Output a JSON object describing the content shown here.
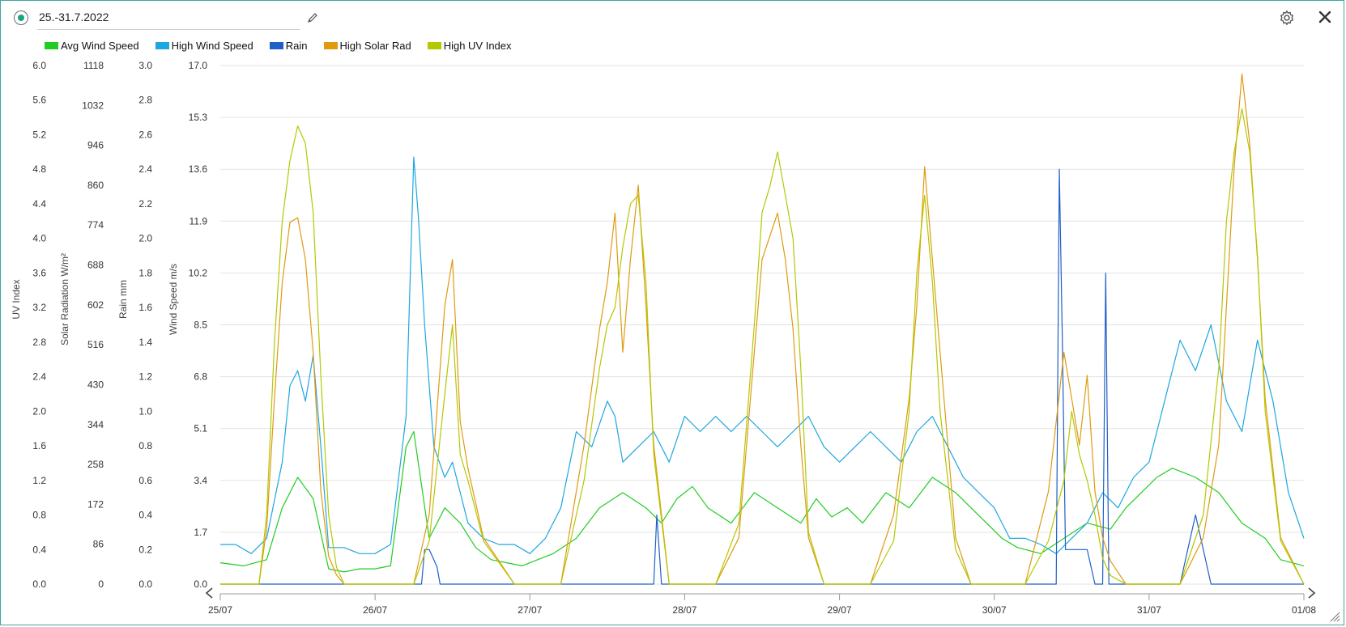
{
  "header": {
    "title": "25.-31.7.2022",
    "edit_icon": "pencil-icon",
    "settings_icon": "gear-icon",
    "close_icon": "close-icon"
  },
  "colors": {
    "avg_wind": "#22cc22",
    "high_wind": "#1ea6e0",
    "rain": "#1f5fc8",
    "solar": "#e09a10",
    "uv": "#b4c800",
    "frame": "#3aa79b"
  },
  "chart_data": {
    "type": "line",
    "title": "",
    "legend_placement": "top-left",
    "grid": true,
    "x_ticks": [
      "25/07",
      "26/07",
      "27/07",
      "28/07",
      "29/07",
      "30/07",
      "31/07",
      "01/08"
    ],
    "x_range_days": [
      0,
      7
    ],
    "axes": [
      {
        "id": "uv",
        "label": "UV Index",
        "range": [
          0,
          6.0
        ],
        "ticks": [
          "0.0",
          "0.4",
          "0.8",
          "1.2",
          "1.6",
          "2.0",
          "2.4",
          "2.8",
          "3.2",
          "3.6",
          "4.0",
          "4.4",
          "4.8",
          "5.2",
          "5.6",
          "6.0"
        ]
      },
      {
        "id": "solar",
        "label": "Solar Radiation W/m²",
        "range": [
          0,
          1118
        ],
        "ticks": [
          "0",
          "86",
          "172",
          "258",
          "344",
          "430",
          "516",
          "602",
          "688",
          "774",
          "860",
          "946",
          "1032",
          "1118"
        ]
      },
      {
        "id": "rain",
        "label": "Rain mm",
        "range": [
          0,
          3.0
        ],
        "ticks": [
          "0.0",
          "0.2",
          "0.4",
          "0.6",
          "0.8",
          "1.0",
          "1.2",
          "1.4",
          "1.6",
          "1.8",
          "2.0",
          "2.2",
          "2.4",
          "2.6",
          "2.8",
          "3.0"
        ]
      },
      {
        "id": "wind",
        "label": "Wind Speed m/s",
        "range": [
          0,
          17.0
        ],
        "ticks": [
          "0.0",
          "1.7",
          "3.4",
          "5.1",
          "6.8",
          "8.5",
          "10.2",
          "11.9",
          "13.6",
          "15.3",
          "17.0"
        ]
      }
    ],
    "series": [
      {
        "name": "Avg Wind Speed",
        "axis": "wind",
        "color": "#22cc22",
        "x": [
          0.0,
          0.15,
          0.3,
          0.4,
          0.5,
          0.6,
          0.7,
          0.8,
          0.9,
          1.0,
          1.1,
          1.2,
          1.25,
          1.35,
          1.45,
          1.55,
          1.65,
          1.75,
          1.85,
          1.95,
          2.05,
          2.15,
          2.3,
          2.45,
          2.6,
          2.75,
          2.85,
          2.95,
          3.05,
          3.15,
          3.3,
          3.45,
          3.6,
          3.75,
          3.85,
          3.95,
          4.05,
          4.15,
          4.3,
          4.45,
          4.6,
          4.75,
          4.85,
          4.95,
          5.05,
          5.15,
          5.3,
          5.45,
          5.6,
          5.75,
          5.85,
          5.95,
          6.05,
          6.15,
          6.3,
          6.45,
          6.6,
          6.75,
          6.85,
          7.0
        ],
        "y": [
          0.7,
          0.6,
          0.8,
          2.5,
          3.5,
          2.8,
          0.5,
          0.4,
          0.5,
          0.5,
          0.6,
          4.5,
          5.0,
          1.5,
          2.5,
          2.0,
          1.2,
          0.8,
          0.7,
          0.6,
          0.8,
          1.0,
          1.5,
          2.5,
          3.0,
          2.5,
          2.0,
          2.8,
          3.2,
          2.5,
          2.0,
          3.0,
          2.5,
          2.0,
          2.8,
          2.2,
          2.5,
          2.0,
          3.0,
          2.5,
          3.5,
          3.0,
          2.5,
          2.0,
          1.5,
          1.2,
          1.0,
          1.5,
          2.0,
          1.8,
          2.5,
          3.0,
          3.5,
          3.8,
          3.5,
          3.0,
          2.0,
          1.5,
          0.8,
          0.6
        ]
      },
      {
        "name": "High Wind Speed",
        "axis": "wind",
        "color": "#1ea6e0",
        "x": [
          0.0,
          0.1,
          0.2,
          0.3,
          0.4,
          0.45,
          0.5,
          0.55,
          0.6,
          0.65,
          0.7,
          0.8,
          0.9,
          1.0,
          1.1,
          1.2,
          1.25,
          1.28,
          1.32,
          1.38,
          1.45,
          1.5,
          1.55,
          1.6,
          1.7,
          1.8,
          1.9,
          2.0,
          2.1,
          2.2,
          2.3,
          2.4,
          2.5,
          2.55,
          2.6,
          2.7,
          2.8,
          2.9,
          3.0,
          3.1,
          3.2,
          3.3,
          3.4,
          3.5,
          3.6,
          3.7,
          3.8,
          3.9,
          4.0,
          4.1,
          4.2,
          4.3,
          4.4,
          4.5,
          4.6,
          4.7,
          4.8,
          4.9,
          5.0,
          5.1,
          5.2,
          5.3,
          5.4,
          5.5,
          5.6,
          5.7,
          5.8,
          5.9,
          6.0,
          6.1,
          6.2,
          6.3,
          6.4,
          6.5,
          6.6,
          6.7,
          6.8,
          6.9,
          7.0
        ],
        "y": [
          1.3,
          1.3,
          1.0,
          1.5,
          4.0,
          6.5,
          7.0,
          6.0,
          7.5,
          4.5,
          1.2,
          1.2,
          1.0,
          1.0,
          1.3,
          5.5,
          14.0,
          12.0,
          8.5,
          4.5,
          3.5,
          4.0,
          3.0,
          2.0,
          1.5,
          1.3,
          1.3,
          1.0,
          1.5,
          2.5,
          5.0,
          4.5,
          6.0,
          5.5,
          4.0,
          4.5,
          5.0,
          4.0,
          5.5,
          5.0,
          5.5,
          5.0,
          5.5,
          5.0,
          4.5,
          5.0,
          5.5,
          4.5,
          4.0,
          4.5,
          5.0,
          4.5,
          4.0,
          5.0,
          5.5,
          4.5,
          3.5,
          3.0,
          2.5,
          1.5,
          1.5,
          1.3,
          1.0,
          1.5,
          2.0,
          3.0,
          2.5,
          3.5,
          4.0,
          6.0,
          8.0,
          7.0,
          8.5,
          6.0,
          5.0,
          8.0,
          6.0,
          3.0,
          1.5
        ]
      },
      {
        "name": "Rain",
        "axis": "rain",
        "color": "#1f5fc8",
        "x": [
          0.0,
          1.3,
          1.32,
          1.35,
          1.4,
          1.42,
          2.8,
          2.82,
          2.85,
          5.4,
          5.42,
          5.44,
          5.46,
          5.5,
          5.55,
          5.6,
          5.65,
          5.7,
          5.72,
          5.74,
          6.2,
          6.25,
          6.3,
          6.35,
          6.4,
          7.0
        ],
        "y": [
          0.0,
          0.0,
          0.2,
          0.2,
          0.1,
          0.0,
          0.0,
          0.4,
          0.0,
          0.0,
          2.4,
          1.4,
          0.2,
          0.2,
          0.2,
          0.2,
          0.0,
          0.0,
          1.8,
          0.0,
          0.0,
          0.2,
          0.4,
          0.2,
          0.0,
          0.0
        ]
      },
      {
        "name": "High Solar Rad",
        "axis": "solar",
        "color": "#e09a10",
        "x": [
          0.0,
          0.25,
          0.3,
          0.35,
          0.4,
          0.45,
          0.5,
          0.55,
          0.6,
          0.65,
          0.7,
          0.75,
          0.8,
          1.0,
          1.25,
          1.35,
          1.45,
          1.5,
          1.55,
          1.6,
          1.7,
          1.9,
          2.2,
          2.35,
          2.45,
          2.5,
          2.55,
          2.6,
          2.65,
          2.7,
          2.75,
          2.8,
          2.9,
          3.2,
          3.35,
          3.45,
          3.5,
          3.55,
          3.6,
          3.65,
          3.7,
          3.75,
          3.8,
          3.9,
          4.2,
          4.35,
          4.45,
          4.5,
          4.55,
          4.6,
          4.65,
          4.7,
          4.75,
          4.85,
          5.2,
          5.35,
          5.45,
          5.5,
          5.55,
          5.6,
          5.65,
          5.7,
          5.75,
          5.85,
          6.2,
          6.35,
          6.45,
          6.5,
          6.55,
          6.6,
          6.65,
          6.7,
          6.75,
          6.85,
          7.0
        ],
        "y": [
          0,
          0,
          120,
          400,
          650,
          780,
          790,
          700,
          500,
          200,
          60,
          20,
          0,
          0,
          0,
          150,
          600,
          700,
          350,
          250,
          100,
          0,
          0,
          300,
          550,
          650,
          800,
          500,
          700,
          860,
          600,
          300,
          0,
          0,
          100,
          500,
          700,
          750,
          800,
          700,
          550,
          300,
          100,
          0,
          0,
          150,
          400,
          600,
          900,
          700,
          500,
          300,
          100,
          0,
          0,
          200,
          500,
          400,
          300,
          450,
          200,
          100,
          50,
          0,
          0,
          100,
          300,
          600,
          900,
          1100,
          950,
          700,
          400,
          100,
          0
        ]
      },
      {
        "name": "High UV Index",
        "axis": "uv",
        "color": "#b4c800",
        "x": [
          0.0,
          0.25,
          0.3,
          0.35,
          0.4,
          0.45,
          0.5,
          0.55,
          0.6,
          0.65,
          0.7,
          0.75,
          0.8,
          1.0,
          1.25,
          1.35,
          1.45,
          1.5,
          1.55,
          1.6,
          1.7,
          1.9,
          2.2,
          2.35,
          2.45,
          2.5,
          2.55,
          2.6,
          2.65,
          2.7,
          2.75,
          2.8,
          2.9,
          3.2,
          3.35,
          3.45,
          3.5,
          3.55,
          3.6,
          3.65,
          3.7,
          3.75,
          3.8,
          3.9,
          4.2,
          4.35,
          4.45,
          4.5,
          4.55,
          4.6,
          4.65,
          4.7,
          4.75,
          4.85,
          5.2,
          5.35,
          5.45,
          5.5,
          5.55,
          5.6,
          5.65,
          5.7,
          5.75,
          5.85,
          6.2,
          6.35,
          6.45,
          6.5,
          6.55,
          6.6,
          6.65,
          6.7,
          6.75,
          6.85,
          7.0
        ],
        "y": [
          0,
          0,
          0.8,
          2.8,
          4.2,
          4.9,
          5.3,
          5.1,
          4.3,
          2.4,
          0.8,
          0.2,
          0,
          0,
          0,
          0.5,
          2.2,
          3.0,
          1.5,
          1.2,
          0.5,
          0,
          0,
          1.2,
          2.5,
          3.0,
          3.2,
          3.9,
          4.4,
          4.5,
          3.5,
          1.5,
          0,
          0,
          0.7,
          3.0,
          4.3,
          4.6,
          5.0,
          4.5,
          4.0,
          2.5,
          0.6,
          0,
          0,
          0.5,
          2.0,
          3.6,
          4.5,
          3.5,
          2.0,
          1.2,
          0.4,
          0,
          0,
          0.5,
          1.2,
          2.0,
          1.5,
          1.2,
          0.8,
          0.3,
          0.1,
          0,
          0,
          0.8,
          2.5,
          4.2,
          5.0,
          5.5,
          5.0,
          3.8,
          2.0,
          0.5,
          0
        ]
      }
    ]
  }
}
